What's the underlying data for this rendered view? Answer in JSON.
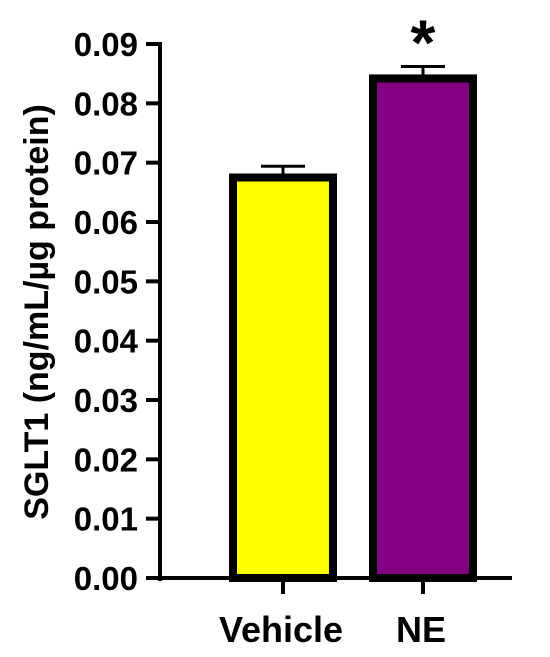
{
  "chart_data": {
    "type": "bar",
    "categories": [
      "Vehicle",
      "NE"
    ],
    "values": [
      0.0675,
      0.0842
    ],
    "errors": [
      0.0019,
      0.002
    ],
    "colors": [
      "#FFFF00",
      "#800080"
    ],
    "edge_color": "#000000",
    "ylabel": "SGLT1 (ng/mL/µg protein)",
    "xlabel": "",
    "ylim": [
      0,
      0.09
    ],
    "yticks": [
      "0.00",
      "0.01",
      "0.02",
      "0.03",
      "0.04",
      "0.05",
      "0.06",
      "0.07",
      "0.08",
      "0.09"
    ],
    "annotations": [
      {
        "category": "NE",
        "text": "*"
      }
    ],
    "grid": false,
    "legend": "none"
  }
}
